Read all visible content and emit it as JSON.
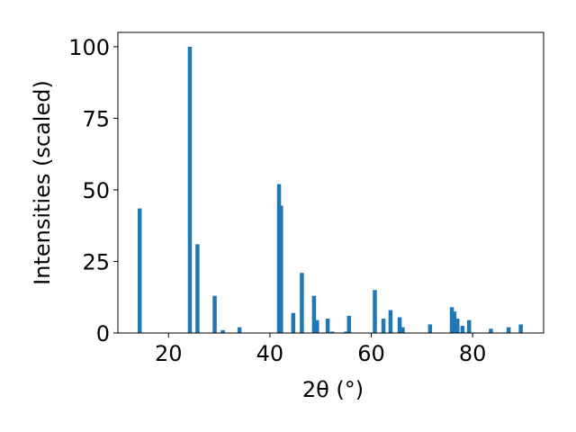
{
  "chart_data": {
    "type": "bar",
    "title": "",
    "xlabel": "2θ (°)",
    "ylabel": "Intensities (scaled)",
    "xlim": [
      10,
      94
    ],
    "ylim": [
      0,
      105
    ],
    "x_ticks": [
      20,
      40,
      60,
      80
    ],
    "y_ticks": [
      0,
      25,
      50,
      75,
      100
    ],
    "grid": false,
    "color": "#1f77b4",
    "bar_width": 0.8,
    "x": [
      14.3,
      24.2,
      25.7,
      29.1,
      30.7,
      34.0,
      41.8,
      42.2,
      44.6,
      46.3,
      48.7,
      49.3,
      51.4,
      52.3,
      55.0,
      55.6,
      60.7,
      62.4,
      63.8,
      65.6,
      66.2,
      71.6,
      75.9,
      76.4,
      77.0,
      78.0,
      79.3,
      83.6,
      87.1,
      89.5
    ],
    "values": [
      43.5,
      100.0,
      31.0,
      13.0,
      1.0,
      2.0,
      52.0,
      44.5,
      7.0,
      21.0,
      13.0,
      4.5,
      5.0,
      0.5,
      0.5,
      6.0,
      15.0,
      5.0,
      8.0,
      5.5,
      2.0,
      3.0,
      9.0,
      7.5,
      5.0,
      2.5,
      4.5,
      1.5,
      2.0,
      3.0
    ]
  }
}
